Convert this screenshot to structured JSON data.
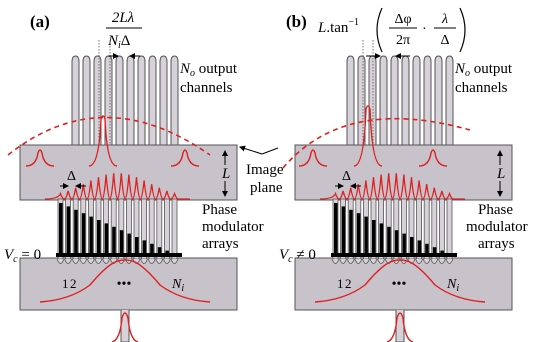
{
  "panels": [
    {
      "id": "a",
      "label": "(a)",
      "top_formula_num": "2Lλ",
      "top_formula_den_a": "N",
      "top_formula_den_sub": "i",
      "top_formula_den_b": "Δ",
      "output_sym": "N",
      "output_sub": "o",
      "output_line1": " output",
      "output_line2": "channels",
      "L_label": "L",
      "delta_label": "Δ",
      "phase_line1": "Phase",
      "phase_line2": "modulator",
      "phase_line3": "arrays",
      "vc_sym": "V",
      "vc_sub": "c",
      "vc_rel": " = 0",
      "ch1": "1",
      "ch2": "2",
      "dots": "•••",
      "ni_sym": "N",
      "ni_sub": "i"
    },
    {
      "id": "b",
      "label": "(b)",
      "formula_L": "L",
      "formula_tan": ".tan",
      "formula_sup": "−1",
      "f1_num": "Δφ",
      "f1_den": "2π",
      "dot": "·",
      "f2_num": "λ",
      "f2_den": "Δ",
      "output_sym": "N",
      "output_sub": "o",
      "output_line1": " output",
      "output_line2": "channels",
      "L_label": "L",
      "delta_label": "Δ",
      "phase_line1": "Phase",
      "phase_line2": "modulator",
      "phase_line3": "arrays",
      "vc_sym": "V",
      "vc_sub": "c",
      "vc_rel": " ≠ 0",
      "ch1": "1",
      "ch2": "2",
      "dots": "•••",
      "ni_sym": "N",
      "ni_sub": "i"
    }
  ],
  "image_plane_line1": "Image",
  "image_plane_line2": "plane",
  "colors": {
    "slab": "#c8c2ca",
    "waveguide": "#d7d2d9",
    "outline": "#555555",
    "phase_bar": "#000000",
    "field": "#e02020"
  }
}
